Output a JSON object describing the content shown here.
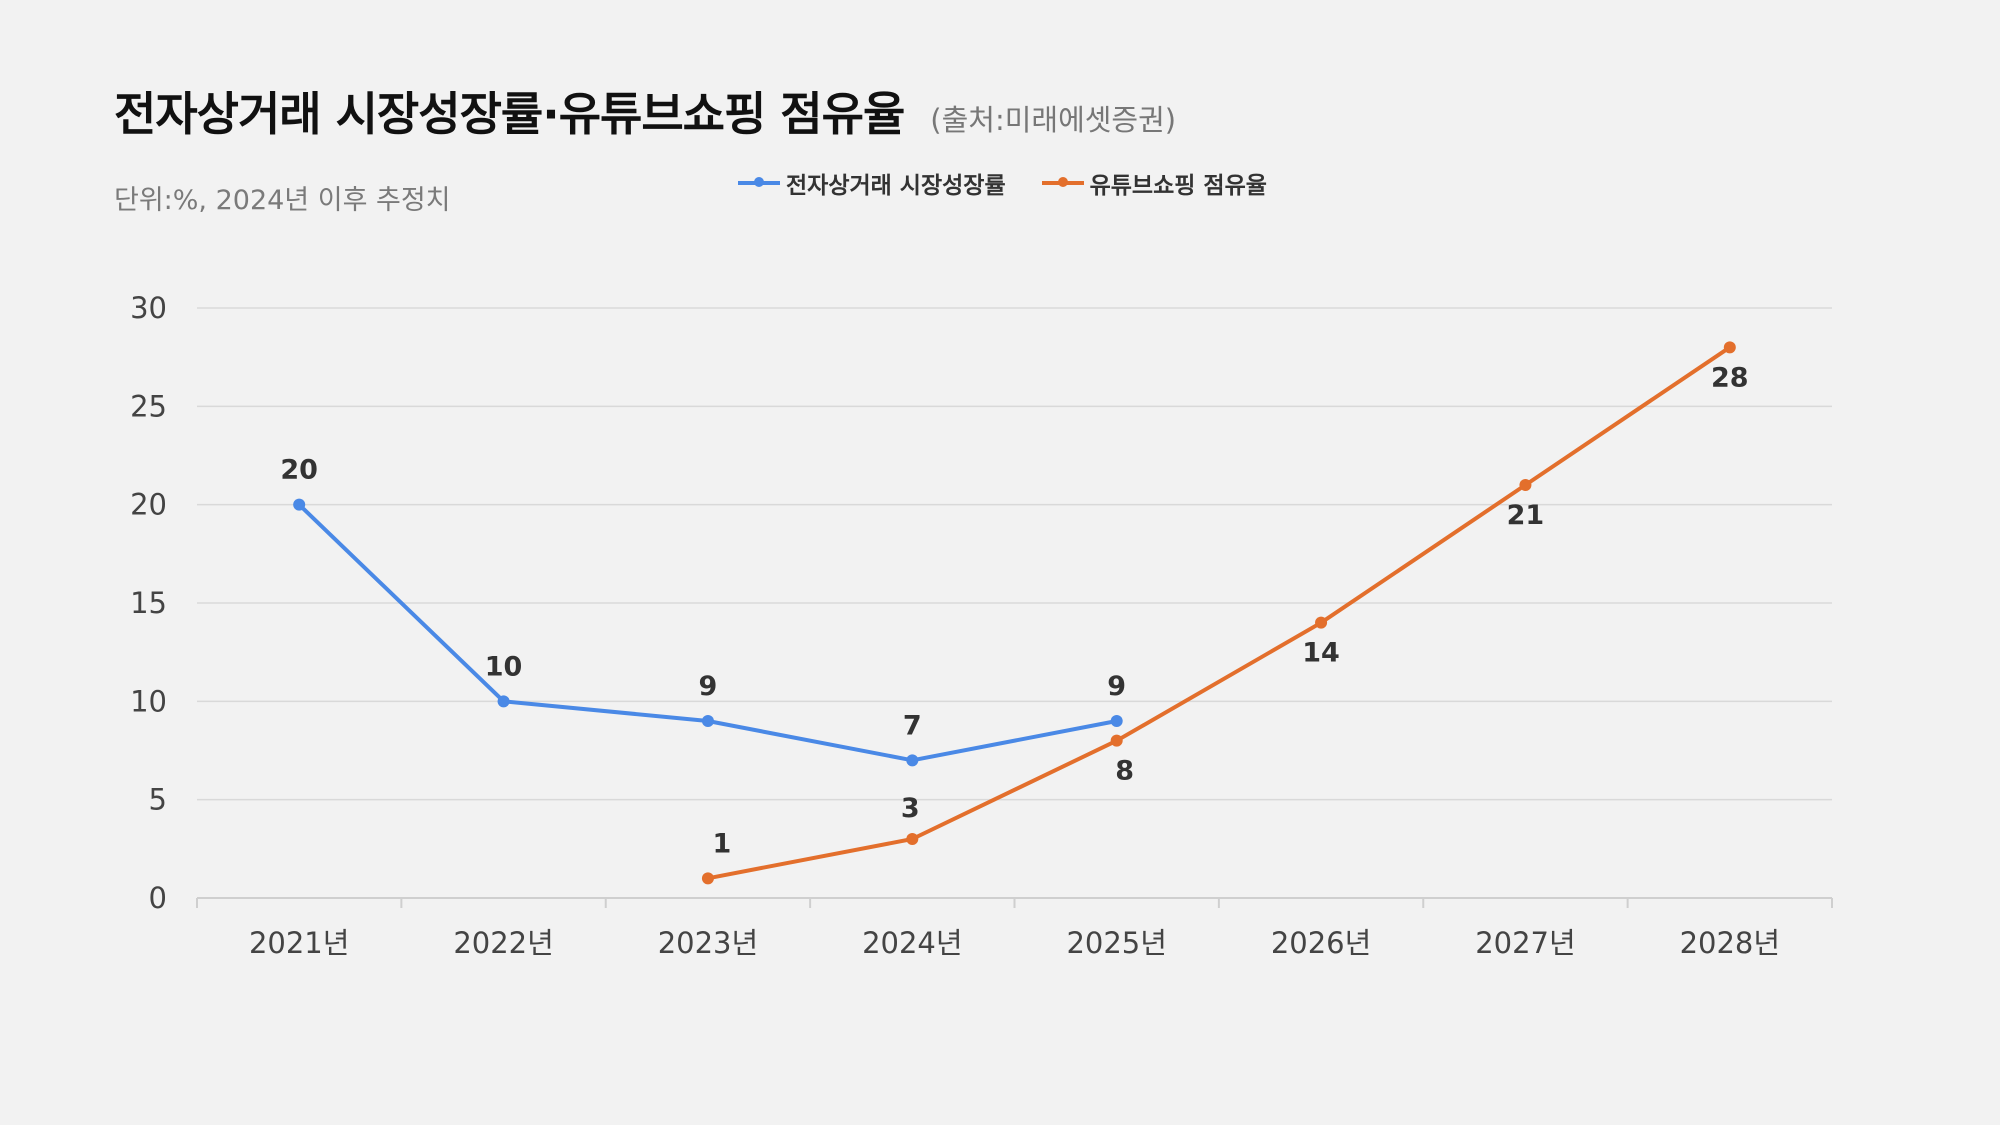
{
  "title": "전자상거래 시장성장률·유튜브쇼핑 점유율",
  "source": "(출처:미래에셋증권)",
  "unit_note": "단위:%, 2024년 이후 추정치",
  "colors": {
    "ecommerce": "#4a89e6",
    "youtube": "#e36f2c",
    "background": "#f2f2f2",
    "grid": "#d9d9d9"
  },
  "chart_data": {
    "type": "line",
    "categories": [
      "2021년",
      "2022년",
      "2023년",
      "2024년",
      "2025년",
      "2026년",
      "2027년",
      "2028년"
    ],
    "series": [
      {
        "name": "전자상거래 시장성장률",
        "values": [
          20,
          10,
          9,
          7,
          9,
          null,
          null,
          null
        ],
        "label_position": "above"
      },
      {
        "name": "유튜브쇼핑 점유율",
        "values": [
          null,
          null,
          1,
          3,
          8,
          14,
          21,
          28
        ],
        "label_position": "below"
      }
    ],
    "ylim": [
      0,
      30
    ],
    "yticks": [
      0,
      5,
      10,
      15,
      20,
      25,
      30
    ],
    "grid": true,
    "legend": "top-center",
    "xlabel": "",
    "ylabel": ""
  }
}
